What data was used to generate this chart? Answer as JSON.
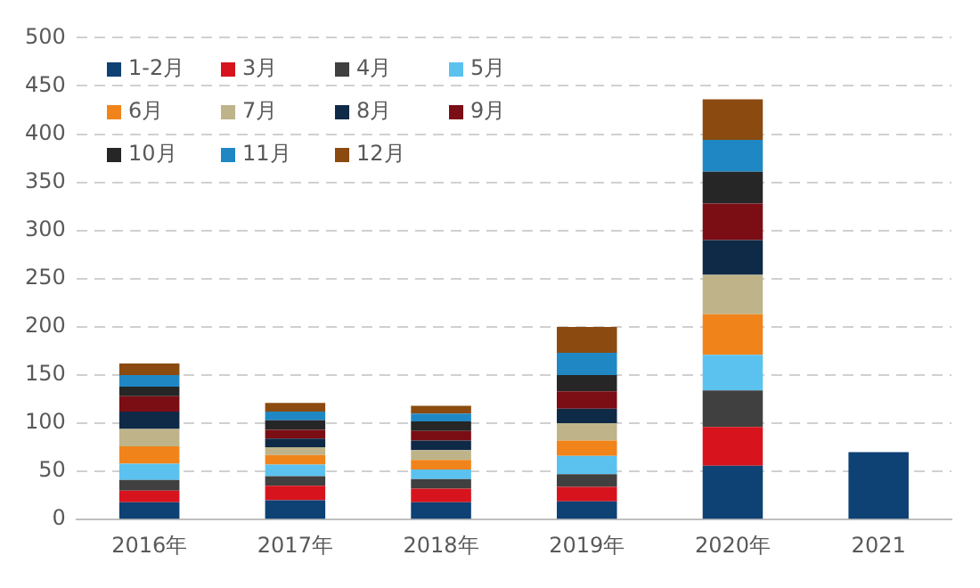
{
  "chart_data": {
    "type": "bar",
    "stacked": true,
    "categories": [
      "2016年",
      "2017年",
      "2018年",
      "2019年",
      "2020年",
      "2021"
    ],
    "series": [
      {
        "name": "1-2月",
        "color": "#0e4174",
        "values": [
          18,
          20,
          18,
          19,
          56,
          70
        ]
      },
      {
        "name": "3月",
        "color": "#d7141e",
        "values": [
          12,
          15,
          14,
          15,
          40,
          null
        ]
      },
      {
        "name": "4月",
        "color": "#404040",
        "values": [
          11,
          10,
          10,
          13,
          38,
          null
        ]
      },
      {
        "name": "5月",
        "color": "#5bc2ef",
        "values": [
          17,
          12,
          10,
          19,
          37,
          null
        ]
      },
      {
        "name": "6月",
        "color": "#f0841b",
        "values": [
          18,
          10,
          10,
          16,
          42,
          null
        ]
      },
      {
        "name": "7月",
        "color": "#bfb38a",
        "values": [
          18,
          8,
          10,
          18,
          41,
          null
        ]
      },
      {
        "name": "8月",
        "color": "#0f2a47",
        "values": [
          18,
          9,
          10,
          15,
          36,
          null
        ]
      },
      {
        "name": "9月",
        "color": "#7b0d15",
        "values": [
          16,
          9,
          10,
          18,
          38,
          null
        ]
      },
      {
        "name": "10月",
        "color": "#262626",
        "values": [
          10,
          10,
          10,
          17,
          33,
          null
        ]
      },
      {
        "name": "11月",
        "color": "#1f88c4",
        "values": [
          12,
          9,
          8,
          23,
          33,
          null
        ]
      },
      {
        "name": "12月",
        "color": "#8b4b10",
        "values": [
          12,
          9,
          8,
          27,
          42,
          null
        ]
      }
    ],
    "ylim": [
      0,
      500
    ],
    "yticks": [
      0,
      50,
      100,
      150,
      200,
      250,
      300,
      350,
      400,
      450,
      500
    ],
    "grid": "y",
    "legend": "top left"
  }
}
